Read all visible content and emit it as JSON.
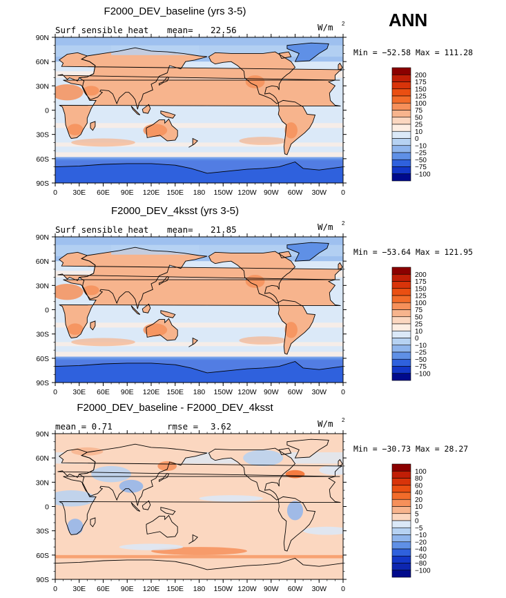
{
  "season": "ANN",
  "chart_data": [
    {
      "type": "heatmap",
      "title": "F2000_DEV_baseline (yrs 3-5)",
      "left_label": "Surf sensible heat",
      "stat_label": "mean=",
      "stat_value": "22.56",
      "units": "W/m",
      "units_sup": "2",
      "range_text": "Min = −52.58 Max = 111.28",
      "colorbar_labels": [
        "200",
        "175",
        "150",
        "125",
        "100",
        "75",
        "50",
        "25",
        "10",
        "0",
        "−10",
        "−25",
        "−50",
        "−75",
        "−100"
      ],
      "colorbar_colors": [
        "#8b0000",
        "#c01e06",
        "#d8340a",
        "#ea4f12",
        "#f26c2a",
        "#f6905a",
        "#f7b48d",
        "#fbd7c0",
        "#fdeee3",
        "#dbe9f8",
        "#b6d2f2",
        "#8fb5ec",
        "#5f90e6",
        "#2f61dd",
        "#1337c7",
        "#000a8c"
      ],
      "xticks": [
        "0",
        "30E",
        "60E",
        "90E",
        "120E",
        "150E",
        "180",
        "150W",
        "120W",
        "90W",
        "60W",
        "30W",
        "0"
      ],
      "yticks": [
        "90N",
        "60N",
        "30N",
        "0",
        "30S",
        "60S",
        "90S"
      ]
    },
    {
      "type": "heatmap",
      "title": "F2000_DEV_4ksst (yrs 3-5)",
      "left_label": "Surf sensible heat",
      "stat_label": "mean=",
      "stat_value": "21.85",
      "units": "W/m",
      "units_sup": "2",
      "range_text": "Min = −53.64 Max = 121.95",
      "colorbar_labels": [
        "200",
        "175",
        "150",
        "125",
        "100",
        "75",
        "50",
        "25",
        "10",
        "0",
        "−10",
        "−25",
        "−50",
        "−75",
        "−100"
      ],
      "colorbar_colors": [
        "#8b0000",
        "#c01e06",
        "#d8340a",
        "#ea4f12",
        "#f26c2a",
        "#f6905a",
        "#f7b48d",
        "#fbd7c0",
        "#fdeee3",
        "#dbe9f8",
        "#b6d2f2",
        "#8fb5ec",
        "#5f90e6",
        "#2f61dd",
        "#1337c7",
        "#000a8c"
      ],
      "xticks": [
        "0",
        "30E",
        "60E",
        "90E",
        "120E",
        "150E",
        "180",
        "150W",
        "120W",
        "90W",
        "60W",
        "30W",
        "0"
      ],
      "yticks": [
        "90N",
        "60N",
        "30N",
        "0",
        "30S",
        "60S",
        "90S"
      ]
    },
    {
      "type": "heatmap",
      "title": "F2000_DEV_baseline - F2000_DEV_4ksst",
      "left_label": "mean =   0.71",
      "stat_label": "rmse =",
      "stat_value": "3.62",
      "units": "W/m",
      "units_sup": "2",
      "range_text": "Min = −30.73 Max =  28.27",
      "colorbar_labels": [
        "100",
        "80",
        "60",
        "40",
        "20",
        "10",
        "5",
        "0",
        "−5",
        "−10",
        "−20",
        "−40",
        "−60",
        "−80",
        "−100"
      ],
      "colorbar_colors": [
        "#8b0000",
        "#c01e06",
        "#d8340a",
        "#ea4f12",
        "#f26c2a",
        "#f6905a",
        "#f7b48d",
        "#fbd7c0",
        "#dbe9f8",
        "#b6d2f2",
        "#8fb5ec",
        "#5f90e6",
        "#2f61dd",
        "#1337c7",
        "#0d26b0",
        "#000a8c"
      ],
      "xticks": [
        "0",
        "30E",
        "60E",
        "90E",
        "120E",
        "150E",
        "180",
        "150W",
        "120W",
        "90W",
        "60W",
        "30W",
        "0"
      ],
      "yticks": [
        "90N",
        "60N",
        "30N",
        "0",
        "30S",
        "60S",
        "90S"
      ]
    }
  ]
}
